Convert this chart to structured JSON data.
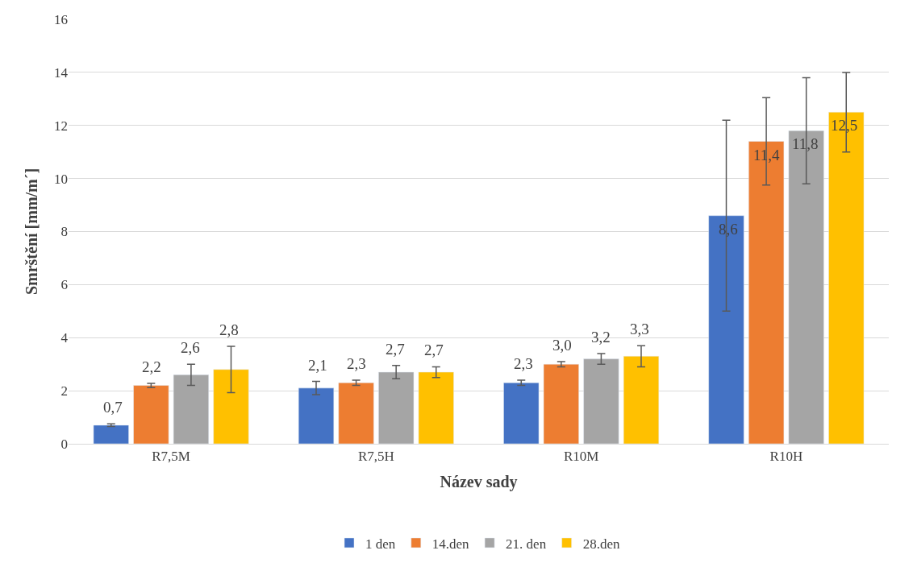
{
  "chart_data": {
    "type": "bar",
    "xlabel": "Název sady",
    "ylabel": "Smrštění [mm/m´]",
    "categories": [
      "R7,5M",
      "R7,5H",
      "R10M",
      "R10H"
    ],
    "series": [
      {
        "name": "1 den",
        "color": "#4472c4",
        "values": [
          0.7,
          2.1,
          2.3,
          8.6
        ],
        "errors": [
          0.05,
          0.25,
          0.1,
          3.6
        ],
        "value_labels": [
          "0,7",
          "2,1",
          "2,3",
          "8,6"
        ]
      },
      {
        "name": "14.den",
        "color": "#ed7d31",
        "values": [
          2.2,
          2.3,
          3.0,
          11.4
        ],
        "errors": [
          0.08,
          0.1,
          0.1,
          1.65
        ],
        "value_labels": [
          "2,2",
          "2,3",
          "3,0",
          "11,4"
        ]
      },
      {
        "name": "21. den",
        "color": "#a5a5a5",
        "values": [
          2.6,
          2.7,
          3.2,
          11.8
        ],
        "errors": [
          0.4,
          0.25,
          0.2,
          2.0
        ],
        "value_labels": [
          "2,6",
          "2,7",
          "3,2",
          "11,8"
        ]
      },
      {
        "name": "28.den",
        "color": "#ffc000",
        "values": [
          2.8,
          2.7,
          3.3,
          12.5
        ],
        "errors": [
          0.87,
          0.2,
          0.4,
          1.5
        ],
        "value_labels": [
          "2,8",
          "2,7",
          "3,3",
          "12,5"
        ]
      }
    ],
    "ylim": [
      0,
      16
    ],
    "yticks": [
      0,
      2,
      4,
      6,
      8,
      10,
      12,
      14,
      16
    ],
    "grid": "y",
    "legend": "bottom"
  }
}
